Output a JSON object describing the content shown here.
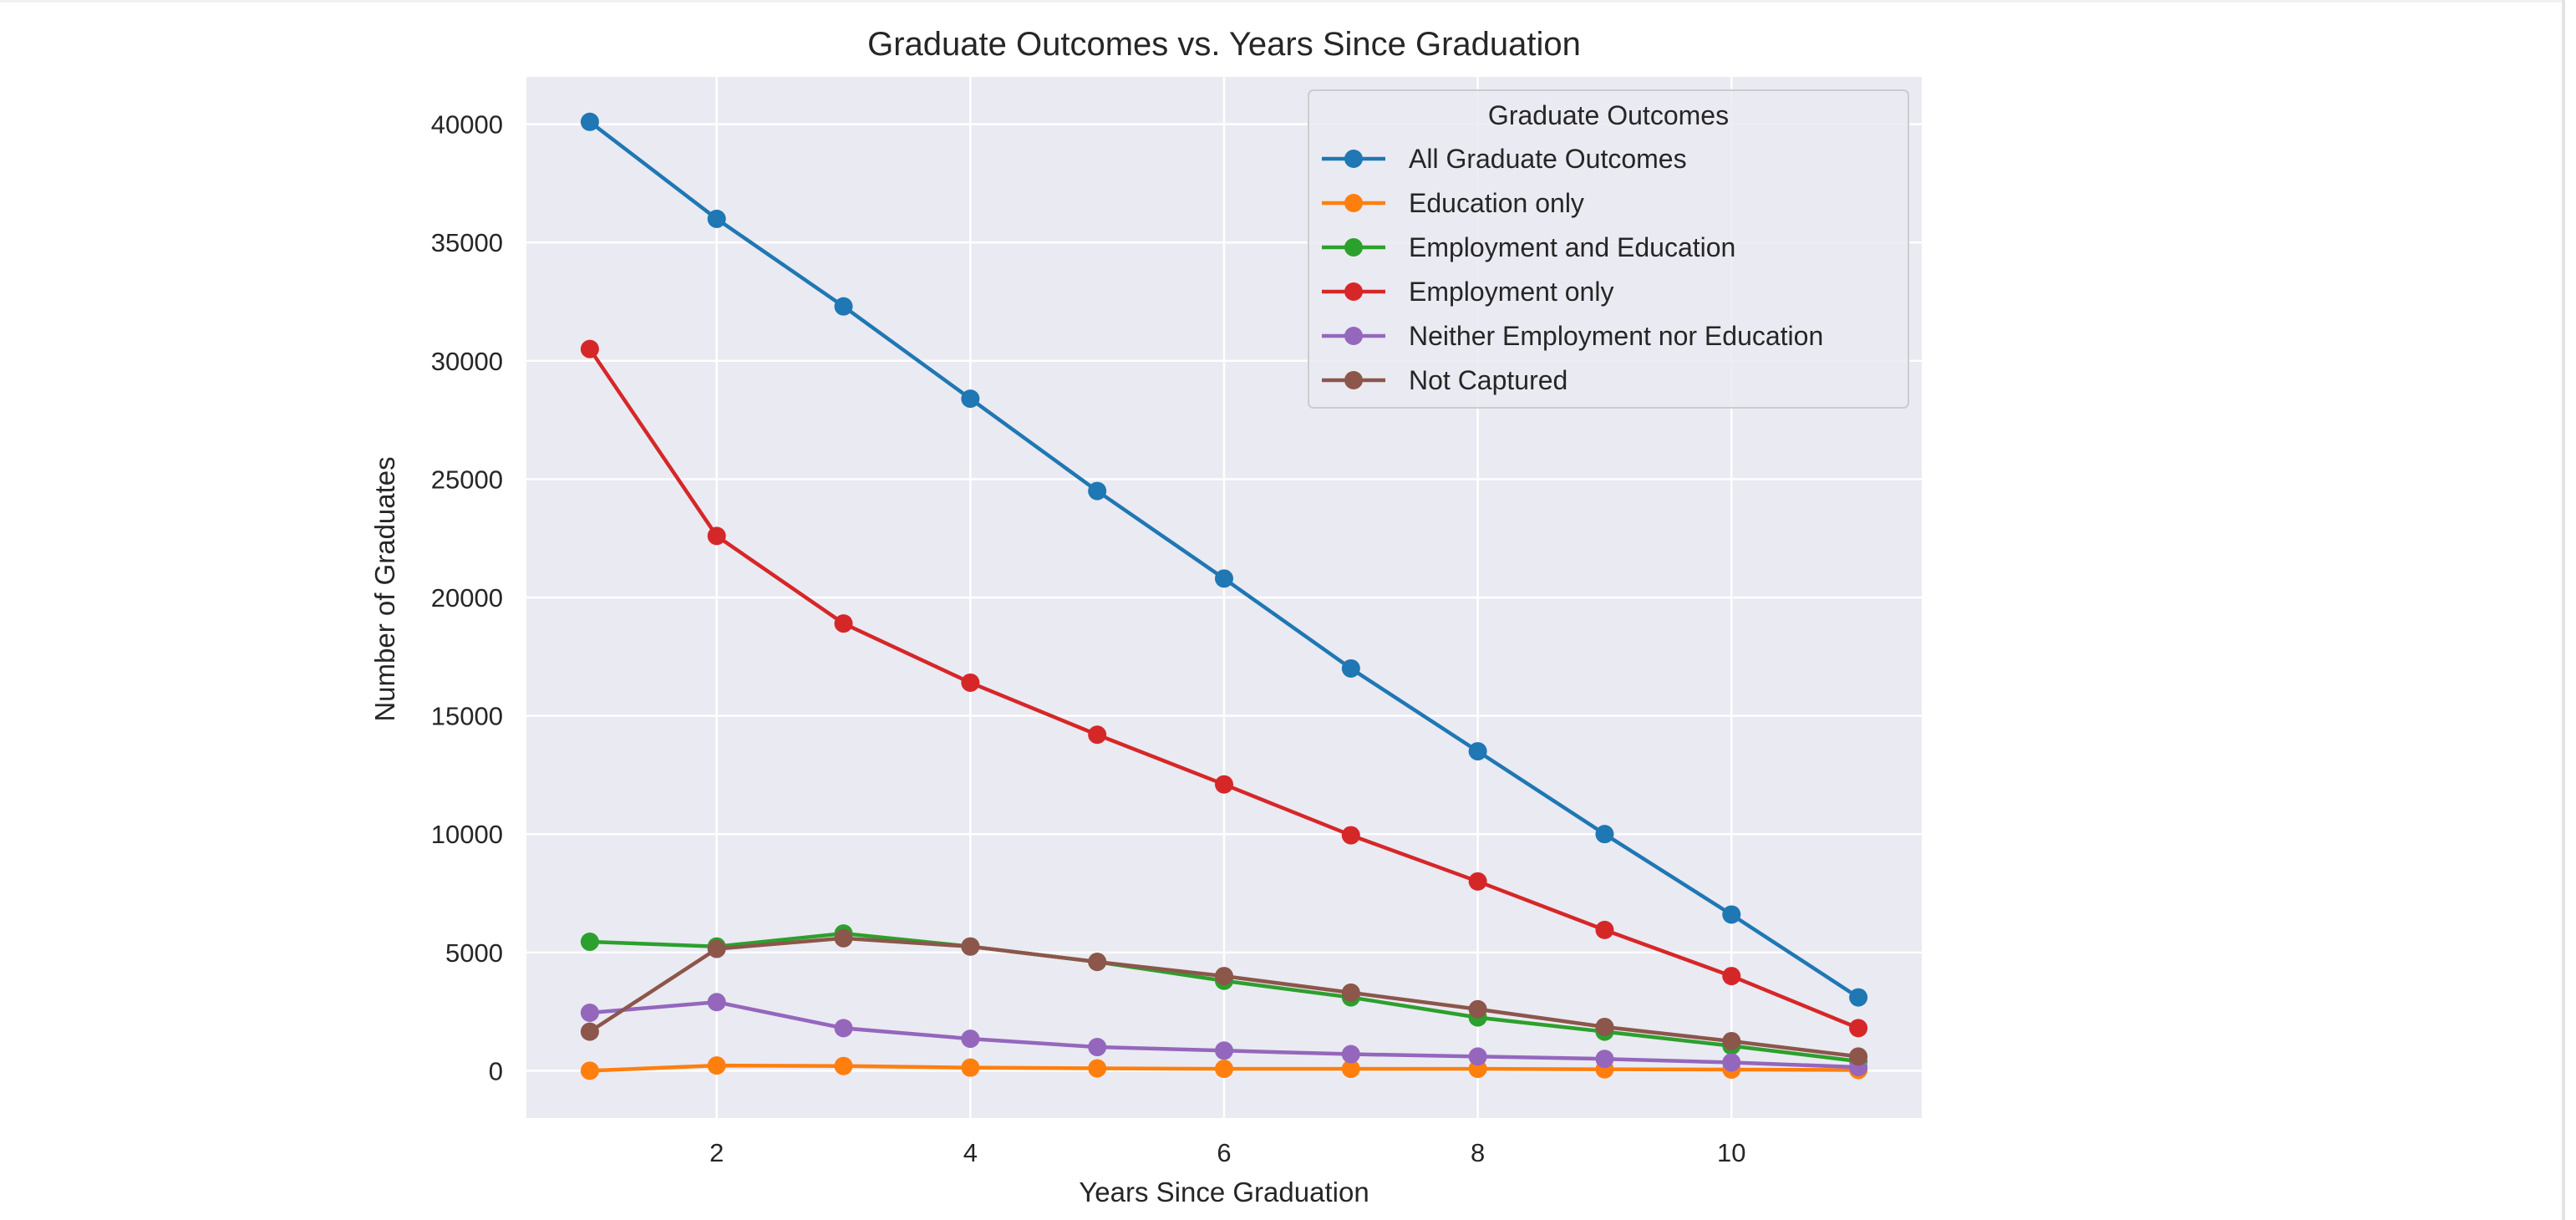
{
  "chart_data": {
    "type": "line",
    "title": "Graduate Outcomes vs. Years Since Graduation",
    "xlabel": "Years Since Graduation",
    "ylabel": "Number of Graduates",
    "x": [
      1,
      2,
      3,
      4,
      5,
      6,
      7,
      8,
      9,
      10,
      11
    ],
    "xlim": [
      0.5,
      11.5
    ],
    "ylim": [
      -2000,
      42000
    ],
    "xticks": [
      2,
      4,
      6,
      8,
      10
    ],
    "yticks": [
      0,
      5000,
      10000,
      15000,
      20000,
      25000,
      30000,
      35000,
      40000
    ],
    "grid": true,
    "background": "#eaeaf2",
    "legend": {
      "title": "Graduate Outcomes",
      "placement": "top-right"
    },
    "series": [
      {
        "name": "All Graduate Outcomes",
        "color": "#1f77b4",
        "values": [
          40100,
          36000,
          32300,
          28400,
          24500,
          20800,
          17000,
          13500,
          10000,
          6600,
          3100
        ]
      },
      {
        "name": "Education only",
        "color": "#ff7f0e",
        "values": [
          0,
          220,
          200,
          130,
          100,
          80,
          80,
          80,
          60,
          50,
          30
        ]
      },
      {
        "name": "Employment and Education",
        "color": "#2ca02c",
        "values": [
          5450,
          5250,
          5800,
          5250,
          4600,
          3800,
          3100,
          2250,
          1650,
          1050,
          400
        ]
      },
      {
        "name": "Employment only",
        "color": "#d62728",
        "values": [
          30500,
          22600,
          18900,
          16400,
          14200,
          12100,
          9950,
          8000,
          5950,
          4000,
          1800
        ]
      },
      {
        "name": "Neither Employment nor Education",
        "color": "#9467bd",
        "values": [
          2450,
          2900,
          1800,
          1350,
          1000,
          850,
          700,
          600,
          500,
          350,
          150
        ]
      },
      {
        "name": "Not Captured",
        "color": "#8c564b",
        "values": [
          1650,
          5150,
          5600,
          5250,
          4600,
          4000,
          3300,
          2600,
          1850,
          1250,
          600
        ]
      }
    ]
  }
}
